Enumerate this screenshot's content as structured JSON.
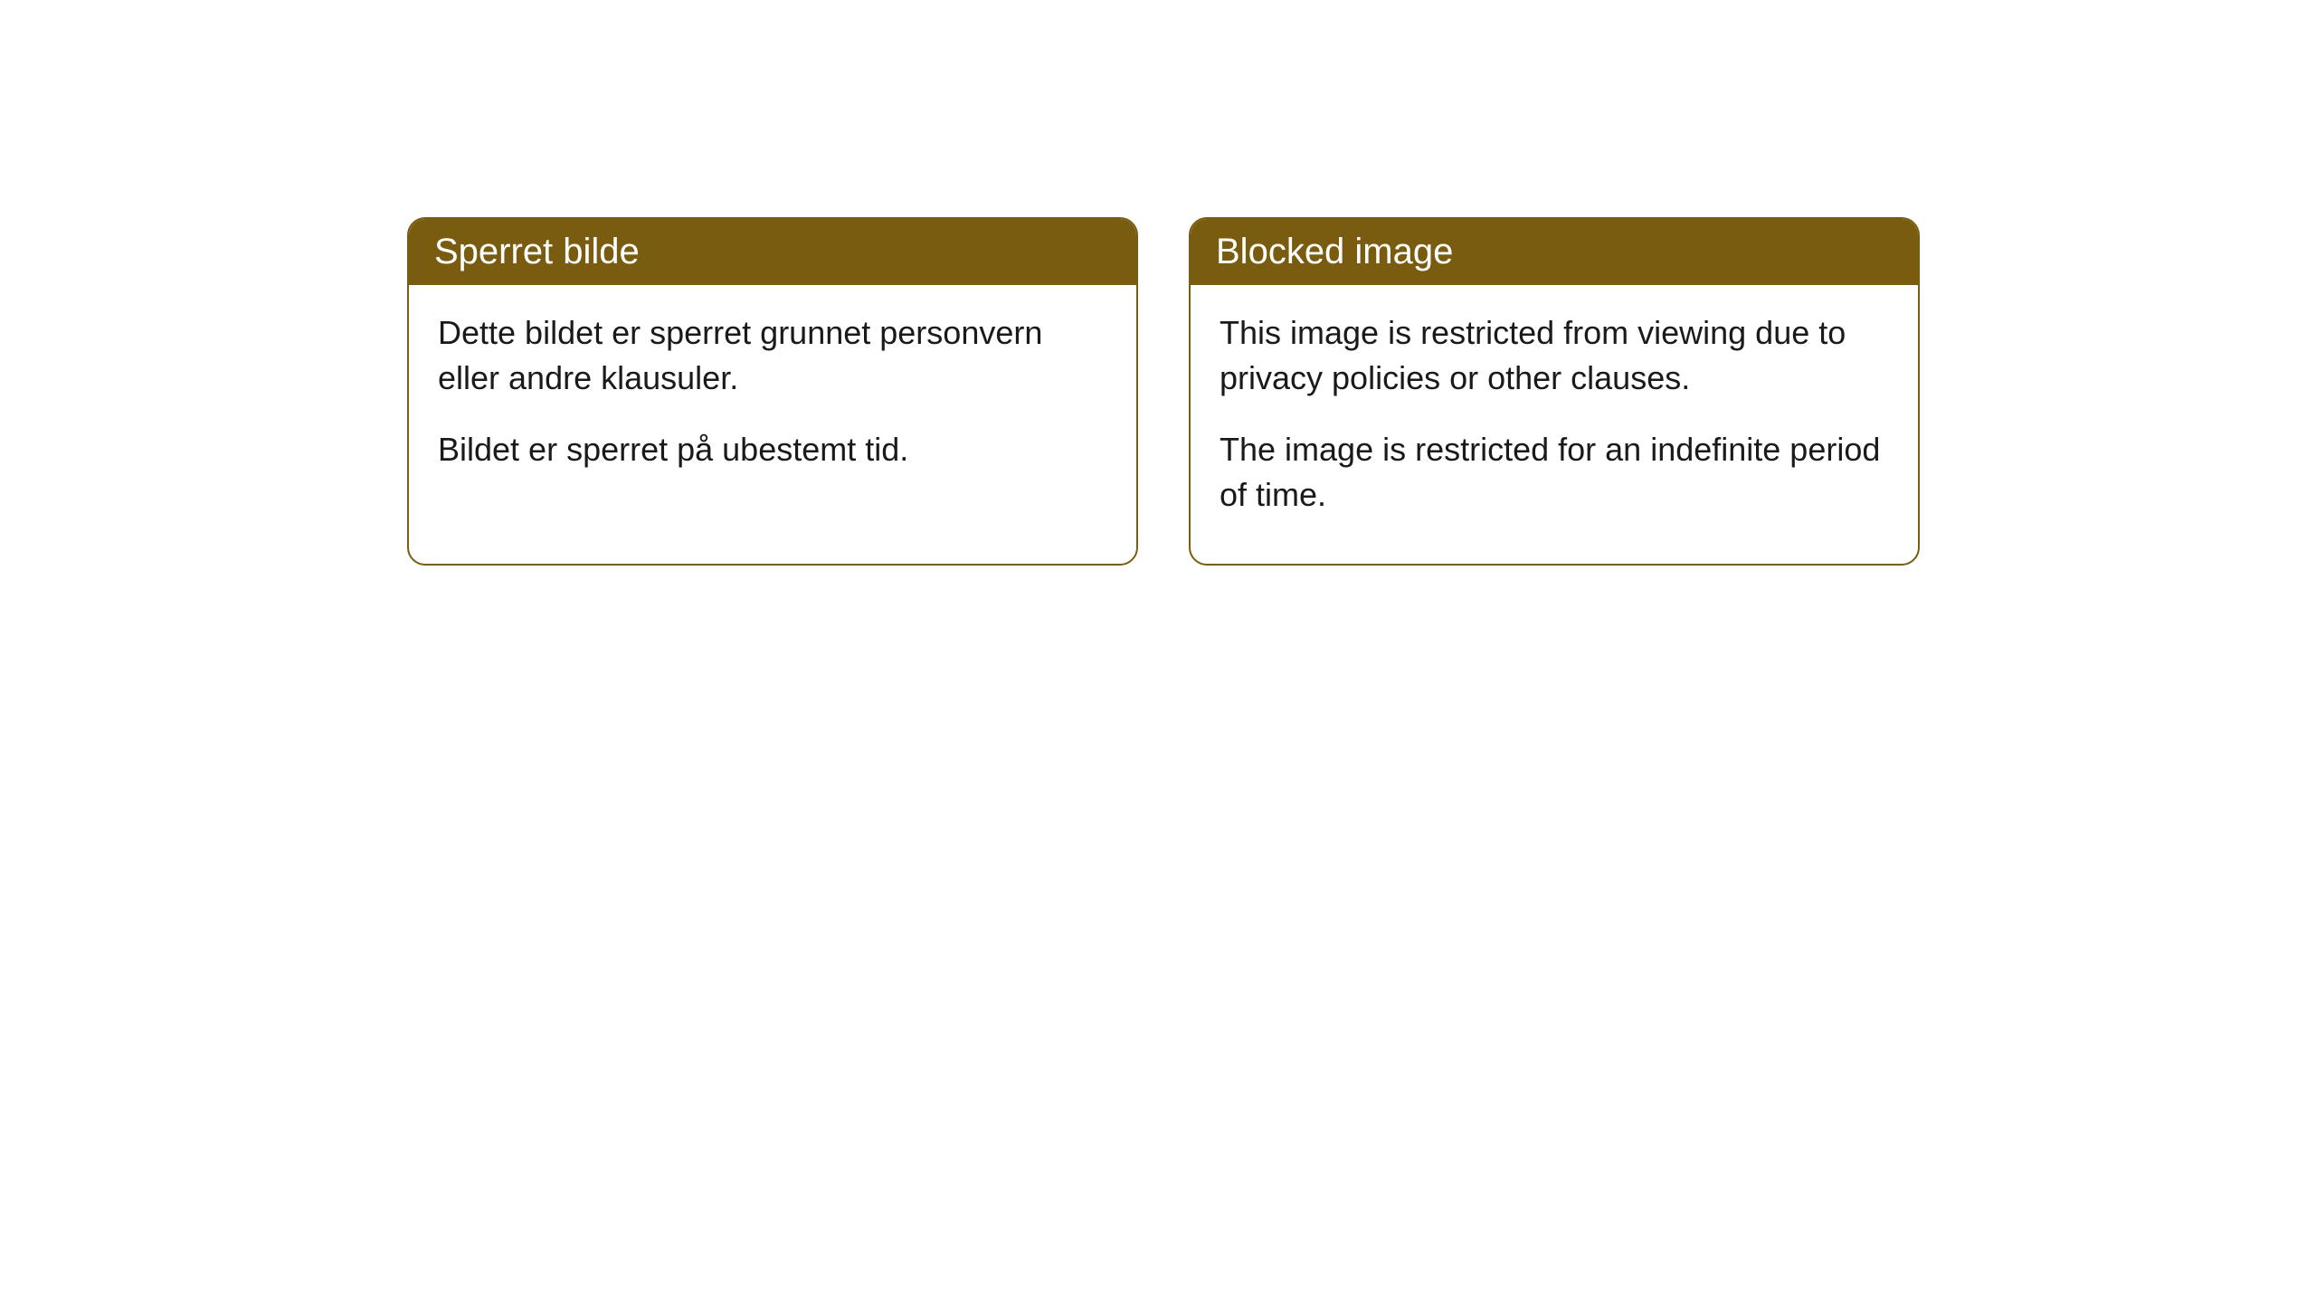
{
  "cards": [
    {
      "title": "Sperret bilde",
      "paragraph1": "Dette bildet er sperret grunnet personvern eller andre klausuler.",
      "paragraph2": "Bildet er sperret på ubestemt tid."
    },
    {
      "title": "Blocked image",
      "paragraph1": "This image is restricted from viewing due to privacy policies or other clauses.",
      "paragraph2": "The image is restricted for an indefinite period of time."
    }
  ],
  "style": {
    "header_bg_color": "#7a5c10",
    "header_text_color": "#ffffff",
    "border_color": "#7a5c10",
    "body_bg_color": "#ffffff",
    "body_text_color": "#1a1a1a",
    "border_radius": 20,
    "header_fontsize": 40,
    "body_fontsize": 36
  }
}
